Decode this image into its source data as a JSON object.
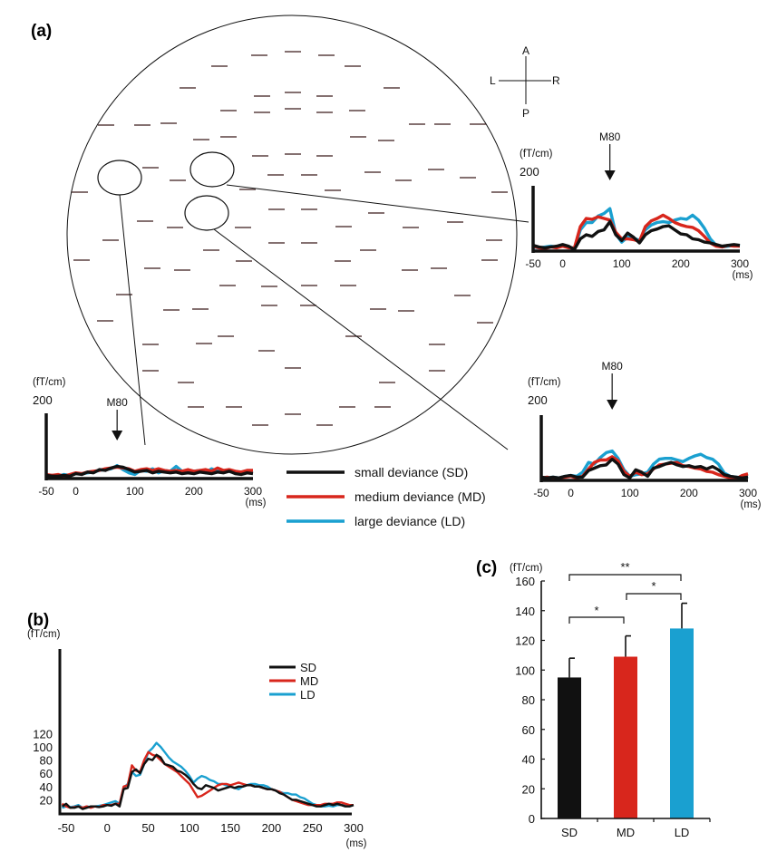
{
  "figure": {
    "panel_a_label": "(a)",
    "panel_b_label": "(b)",
    "panel_c_label": "(c)",
    "orientation": {
      "anterior": "A",
      "posterior": "P",
      "left": "L",
      "right": "R"
    },
    "colors": {
      "SD": "#111111",
      "MD": "#d8261c",
      "LD": "#1aa0d0"
    },
    "legend_a": [
      {
        "key": "SD",
        "label": "small deviance (SD)"
      },
      {
        "key": "MD",
        "label": "medium deviance (MD)"
      },
      {
        "key": "LD",
        "label": "large deviance (LD)"
      }
    ]
  },
  "chart_data": [
    {
      "id": "a-right-top",
      "type": "line",
      "title": "M80",
      "annotation": "M80",
      "annotation_x": 80,
      "ylabel": "(fT/cm)",
      "xlabel": "(ms)",
      "ytick_labels": [
        "200"
      ],
      "ylim": [
        0,
        200
      ],
      "xlim": [
        -50,
        300
      ],
      "xtick_labels": [
        "-50",
        "0",
        "100",
        "200",
        "300"
      ],
      "xticks": [
        -50,
        0,
        100,
        200,
        300
      ],
      "x": [
        -50,
        -40,
        -30,
        -20,
        -10,
        0,
        10,
        20,
        30,
        40,
        50,
        60,
        70,
        80,
        90,
        100,
        110,
        120,
        130,
        140,
        150,
        160,
        170,
        180,
        190,
        200,
        210,
        220,
        230,
        240,
        250,
        260,
        270,
        280,
        290,
        300
      ],
      "series": [
        {
          "name": "SD",
          "values": [
            14,
            10,
            8,
            10,
            12,
            16,
            12,
            4,
            30,
            40,
            36,
            48,
            52,
            72,
            40,
            26,
            44,
            34,
            20,
            40,
            50,
            54,
            60,
            62,
            52,
            42,
            40,
            30,
            28,
            22,
            20,
            16,
            12,
            14,
            16,
            14
          ]
        },
        {
          "name": "MD",
          "values": [
            12,
            8,
            6,
            10,
            8,
            12,
            8,
            8,
            60,
            80,
            78,
            84,
            80,
            76,
            46,
            30,
            30,
            28,
            24,
            60,
            74,
            80,
            88,
            80,
            70,
            64,
            60,
            58,
            50,
            36,
            20,
            12,
            10,
            14,
            12,
            12
          ]
        },
        {
          "name": "LD",
          "values": [
            10,
            8,
            10,
            12,
            10,
            14,
            10,
            4,
            52,
            70,
            70,
            86,
            92,
            104,
            42,
            22,
            34,
            32,
            26,
            52,
            64,
            70,
            72,
            70,
            76,
            80,
            78,
            88,
            76,
            56,
            30,
            14,
            10,
            12,
            14,
            12
          ]
        }
      ]
    },
    {
      "id": "a-left-bottom",
      "type": "line",
      "annotation": "M80",
      "annotation_x": 70,
      "ylabel": "(fT/cm)",
      "xlabel": "(ms)",
      "ytick_labels": [
        "200"
      ],
      "ylim": [
        0,
        200
      ],
      "xlim": [
        -50,
        300
      ],
      "xtick_labels": [
        "-50",
        "0",
        "100",
        "200",
        "300"
      ],
      "xticks": [
        -50,
        0,
        100,
        200,
        300
      ],
      "x": [
        -50,
        -40,
        -30,
        -20,
        -10,
        0,
        10,
        20,
        30,
        40,
        50,
        60,
        70,
        80,
        90,
        100,
        110,
        120,
        130,
        140,
        150,
        160,
        170,
        180,
        190,
        200,
        210,
        220,
        230,
        240,
        250,
        260,
        270,
        280,
        290,
        300
      ],
      "series": [
        {
          "name": "SD",
          "values": [
            8,
            6,
            6,
            8,
            6,
            12,
            10,
            16,
            14,
            22,
            20,
            26,
            30,
            28,
            22,
            16,
            18,
            20,
            14,
            18,
            16,
            14,
            16,
            12,
            14,
            12,
            16,
            14,
            12,
            16,
            14,
            18,
            12,
            10,
            14,
            12
          ]
        },
        {
          "name": "MD",
          "values": [
            10,
            8,
            10,
            6,
            10,
            14,
            12,
            16,
            18,
            20,
            24,
            26,
            28,
            26,
            24,
            18,
            22,
            24,
            20,
            24,
            20,
            18,
            20,
            18,
            22,
            18,
            20,
            22,
            18,
            26,
            20,
            22,
            18,
            16,
            20,
            20
          ]
        },
        {
          "name": "LD",
          "values": [
            6,
            8,
            6,
            10,
            8,
            12,
            12,
            14,
            16,
            20,
            22,
            24,
            32,
            22,
            14,
            10,
            20,
            18,
            24,
            14,
            20,
            18,
            30,
            18,
            14,
            18,
            20,
            14,
            24,
            18,
            16,
            18,
            14,
            12,
            16,
            14
          ]
        }
      ]
    },
    {
      "id": "a-right-bottom",
      "type": "line",
      "annotation": "M80",
      "annotation_x": 70,
      "ylabel": "(fT/cm)",
      "xlabel": "(ms)",
      "ytick_labels": [
        "200"
      ],
      "ylim": [
        0,
        200
      ],
      "xlim": [
        -50,
        300
      ],
      "xtick_labels": [
        "-50",
        "0",
        "100",
        "200",
        "300"
      ],
      "xticks": [
        -50,
        0,
        100,
        200,
        300
      ],
      "x": [
        -50,
        -40,
        -30,
        -20,
        -10,
        0,
        10,
        20,
        30,
        40,
        50,
        60,
        70,
        80,
        90,
        100,
        110,
        120,
        130,
        140,
        150,
        160,
        170,
        180,
        190,
        200,
        210,
        220,
        230,
        240,
        250,
        260,
        270,
        280,
        290,
        300
      ],
      "series": [
        {
          "name": "SD",
          "values": [
            8,
            6,
            8,
            6,
            10,
            12,
            8,
            8,
            24,
            30,
            36,
            38,
            52,
            40,
            14,
            6,
            26,
            20,
            10,
            30,
            34,
            40,
            44,
            38,
            34,
            36,
            32,
            34,
            28,
            34,
            26,
            14,
            10,
            8,
            6,
            8
          ]
        },
        {
          "name": "MD",
          "values": [
            6,
            8,
            4,
            6,
            8,
            10,
            6,
            10,
            28,
            44,
            50,
            50,
            58,
            48,
            22,
            10,
            20,
            14,
            16,
            28,
            38,
            40,
            42,
            44,
            36,
            34,
            30,
            28,
            22,
            20,
            14,
            10,
            6,
            4,
            12,
            16
          ]
        },
        {
          "name": "LD",
          "values": [
            4,
            6,
            8,
            6,
            10,
            12,
            10,
            20,
            44,
            40,
            56,
            68,
            72,
            54,
            26,
            10,
            14,
            16,
            20,
            40,
            52,
            54,
            54,
            50,
            46,
            54,
            60,
            64,
            56,
            52,
            40,
            18,
            10,
            8,
            6,
            10
          ]
        }
      ]
    },
    {
      "id": "b",
      "type": "line",
      "title": "",
      "ylabel": "(fT/cm)",
      "xlabel": "(ms)",
      "ylim": [
        0,
        120
      ],
      "yticks": [
        20,
        40,
        60,
        80,
        100,
        120
      ],
      "ytick_labels": [
        "20",
        "40",
        "60",
        "80",
        "100",
        "120"
      ],
      "xlim": [
        -55,
        300
      ],
      "xticks": [
        -50,
        0,
        50,
        100,
        150,
        200,
        250,
        300
      ],
      "xtick_labels": [
        "-50",
        "0",
        "50",
        "100",
        "150",
        "200",
        "250",
        "300"
      ],
      "legend": [
        "SD",
        "MD",
        "LD"
      ],
      "legend_position": "top-right",
      "x": [
        -55,
        -50,
        -45,
        -40,
        -35,
        -30,
        -25,
        -20,
        -15,
        -10,
        -5,
        0,
        5,
        10,
        15,
        20,
        25,
        30,
        35,
        40,
        45,
        50,
        55,
        60,
        65,
        70,
        75,
        80,
        85,
        90,
        95,
        100,
        105,
        110,
        115,
        120,
        125,
        130,
        135,
        140,
        145,
        150,
        155,
        160,
        165,
        170,
        175,
        180,
        185,
        190,
        195,
        200,
        205,
        210,
        215,
        220,
        225,
        230,
        235,
        240,
        245,
        250,
        255,
        260,
        265,
        270,
        275,
        280,
        285,
        290,
        295,
        300
      ],
      "series": [
        {
          "name": "SD",
          "values": [
            10,
            14,
            8,
            8,
            10,
            6,
            8,
            10,
            10,
            9,
            10,
            12,
            11,
            14,
            10,
            36,
            38,
            62,
            66,
            60,
            74,
            82,
            80,
            88,
            84,
            74,
            72,
            70,
            64,
            62,
            58,
            52,
            44,
            38,
            36,
            42,
            40,
            38,
            34,
            36,
            38,
            40,
            38,
            40,
            40,
            42,
            42,
            40,
            40,
            38,
            36,
            36,
            34,
            30,
            28,
            24,
            20,
            20,
            18,
            16,
            14,
            12,
            10,
            10,
            12,
            14,
            12,
            14,
            12,
            10,
            10,
            12
          ]
        },
        {
          "name": "MD",
          "values": [
            14,
            10,
            8,
            9,
            10,
            8,
            10,
            8,
            10,
            9,
            12,
            12,
            12,
            14,
            14,
            40,
            42,
            72,
            64,
            62,
            80,
            92,
            88,
            86,
            80,
            74,
            70,
            66,
            62,
            56,
            50,
            44,
            34,
            24,
            26,
            30,
            34,
            38,
            42,
            44,
            44,
            42,
            44,
            46,
            44,
            42,
            42,
            40,
            40,
            38,
            36,
            36,
            34,
            32,
            28,
            24,
            20,
            18,
            16,
            14,
            12,
            12,
            12,
            12,
            14,
            14,
            14,
            16,
            16,
            14,
            12,
            12
          ]
        },
        {
          "name": "LD",
          "values": [
            8,
            10,
            9,
            10,
            12,
            8,
            10,
            9,
            10,
            11,
            12,
            14,
            16,
            18,
            14,
            38,
            44,
            62,
            56,
            58,
            74,
            92,
            98,
            106,
            100,
            92,
            84,
            78,
            74,
            70,
            64,
            56,
            46,
            52,
            56,
            54,
            50,
            48,
            44,
            44,
            42,
            40,
            38,
            36,
            40,
            42,
            44,
            44,
            42,
            42,
            40,
            36,
            34,
            32,
            30,
            30,
            28,
            28,
            24,
            22,
            18,
            14,
            12,
            10,
            10,
            11,
            10,
            12,
            12,
            12,
            12,
            12
          ]
        }
      ]
    },
    {
      "id": "c",
      "type": "bar",
      "title": "",
      "ylabel": "(fT/cm)",
      "categories": [
        "SD",
        "MD",
        "LD"
      ],
      "values": [
        95,
        109,
        128
      ],
      "error_upper": [
        108,
        123,
        145
      ],
      "ylim": [
        0,
        160
      ],
      "yticks": [
        0,
        20,
        40,
        60,
        80,
        100,
        120,
        140,
        160
      ],
      "ytick_labels": [
        "0",
        "20",
        "40",
        "60",
        "80",
        "100",
        "120",
        "140",
        "160"
      ],
      "significance": [
        {
          "from": "SD",
          "to": "MD",
          "label": "*"
        },
        {
          "from": "MD",
          "to": "LD",
          "label": "*"
        },
        {
          "from": "SD",
          "to": "LD",
          "label": "**"
        }
      ]
    }
  ]
}
